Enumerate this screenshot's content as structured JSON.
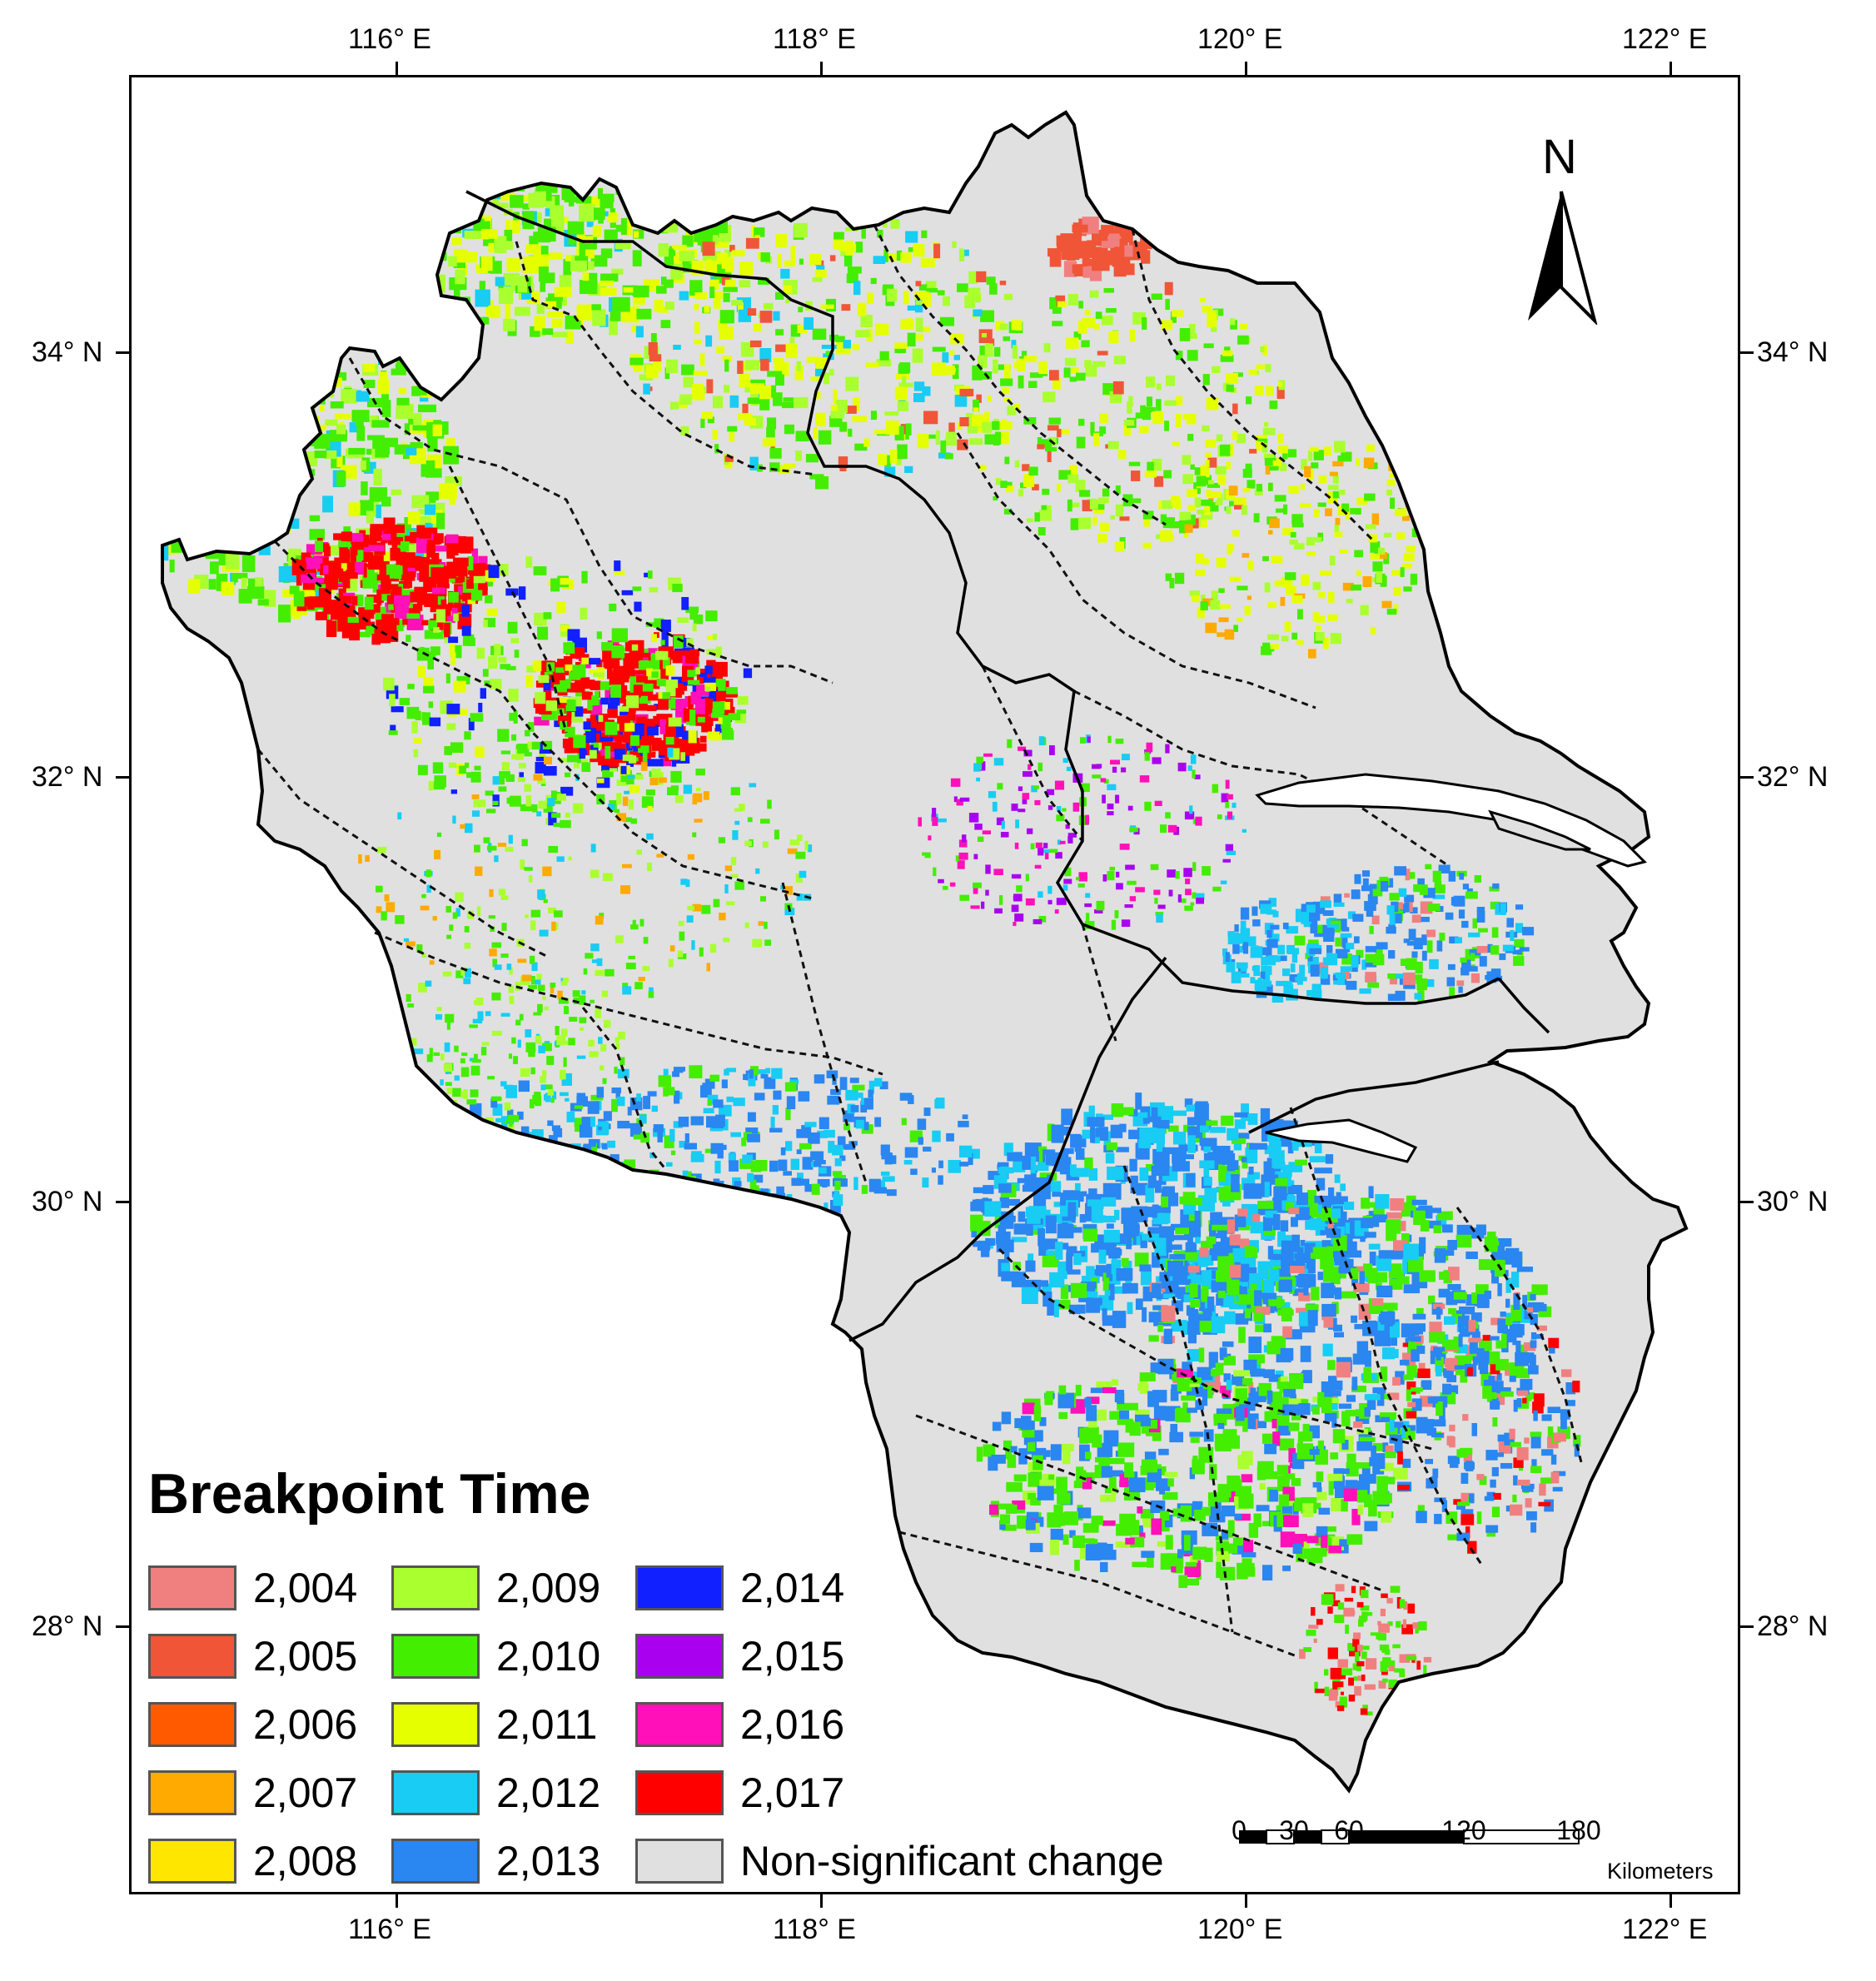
{
  "graticule": {
    "top_lon": [
      "116° E",
      "118° E",
      "120° E",
      "122° E"
    ],
    "bottom_lon": [
      "116° E",
      "118° E",
      "120° E",
      "122° E"
    ],
    "left_lat": [
      "34° N",
      "32° N",
      "30° N",
      "28° N"
    ],
    "right_lat": [
      "34° N",
      "32° N",
      "30° N",
      "28° N"
    ]
  },
  "legend": {
    "title": "Breakpoint Time",
    "items": [
      {
        "label": "2,004",
        "color": "#f08080"
      },
      {
        "label": "2,005",
        "color": "#f05538"
      },
      {
        "label": "2,006",
        "color": "#ff5a00"
      },
      {
        "label": "2,007",
        "color": "#ffaa00"
      },
      {
        "label": "2,008",
        "color": "#ffe600"
      },
      {
        "label": "2,009",
        "color": "#aaff2e"
      },
      {
        "label": "2,010",
        "color": "#44ee00"
      },
      {
        "label": "2,011",
        "color": "#e6ff00"
      },
      {
        "label": "2,012",
        "color": "#18ccf4"
      },
      {
        "label": "2,013",
        "color": "#2a86f0"
      },
      {
        "label": "2,014",
        "color": "#1020ff"
      },
      {
        "label": "2,015",
        "color": "#aa00f0"
      },
      {
        "label": "2,016",
        "color": "#ff10b8"
      },
      {
        "label": "2,017",
        "color": "#ff0000"
      },
      {
        "label": "Non-significant change",
        "color": "#e0e0e0"
      }
    ]
  },
  "north_arrow": {
    "label": "N",
    "icon": "north-arrow-icon"
  },
  "scale_bar": {
    "numbers": [
      "0",
      "30",
      "60",
      "120",
      "180"
    ],
    "units": "Kilometers"
  }
}
